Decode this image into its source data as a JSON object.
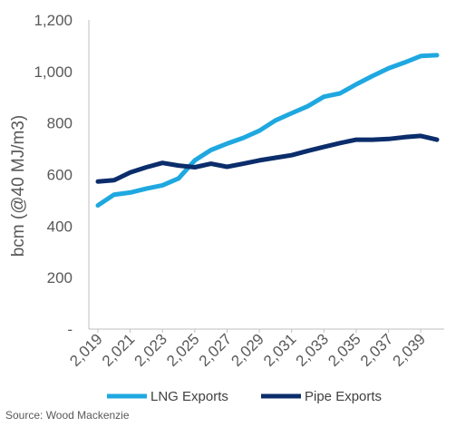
{
  "chart_data": {
    "type": "line",
    "ylabel": "bcm (@40 MJ/m3)",
    "xlabel": "",
    "ylim": [
      0,
      1200
    ],
    "y_ticks": [
      {
        "value": 0,
        "label": "-"
      },
      {
        "value": 200,
        "label": "200"
      },
      {
        "value": 400,
        "label": "400"
      },
      {
        "value": 600,
        "label": "600"
      },
      {
        "value": 800,
        "label": "800"
      },
      {
        "value": 1000,
        "label": "1,000"
      },
      {
        "value": 1200,
        "label": "1,200"
      }
    ],
    "x": [
      2019,
      2020,
      2021,
      2022,
      2023,
      2024,
      2025,
      2026,
      2027,
      2028,
      2029,
      2030,
      2031,
      2032,
      2033,
      2034,
      2035,
      2036,
      2037,
      2038,
      2039,
      2040
    ],
    "x_tick_labels": [
      "2,019",
      "2,021",
      "2,023",
      "2,025",
      "2,027",
      "2,029",
      "2,031",
      "2,033",
      "2,035",
      "2,037",
      "2,039"
    ],
    "x_tick_values": [
      2019,
      2021,
      2023,
      2025,
      2027,
      2029,
      2031,
      2033,
      2035,
      2037,
      2039
    ],
    "series": [
      {
        "name": "LNG Exports",
        "color": "#1fa8e0",
        "values": [
          480,
          522,
          530,
          545,
          558,
          585,
          655,
          695,
          720,
          742,
          770,
          810,
          838,
          865,
          902,
          915,
          950,
          982,
          1012,
          1035,
          1060,
          1063
        ]
      },
      {
        "name": "Pipe Exports",
        "color": "#0b2d6b",
        "values": [
          573,
          578,
          608,
          628,
          645,
          635,
          628,
          642,
          630,
          642,
          655,
          665,
          675,
          692,
          707,
          722,
          735,
          735,
          738,
          745,
          750,
          735
        ]
      }
    ],
    "legend_position": "bottom",
    "grid": false
  },
  "source": "Source: Wood Mackenzie"
}
